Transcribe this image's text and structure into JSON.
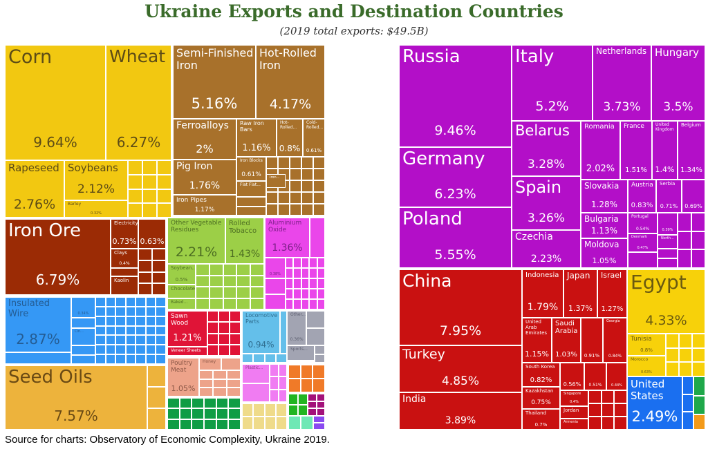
{
  "title": "Ukraine Exports and Destination Countries",
  "subtitle": "(2019 total exports: $49.5B)",
  "source": "Source for charts: Observatory of Economic Complexity, Ukraine 2019.",
  "colors": {
    "yellow": "#f2c811",
    "brown": "#a8712b",
    "maroon": "#9b2b05",
    "green": "#9ccf47",
    "pink": "#ea46ea",
    "blue": "#3598f5",
    "orange": "#edb33c",
    "red": "#e01437",
    "lightblue": "#64bfea",
    "grey": "#a2a4b2",
    "salmon": "#eda38a",
    "pink2": "#f07cf2",
    "darkgreen": "#0f9d45",
    "lightyellow": "#efdb8a",
    "orange2": "#f07a28",
    "green2": "#22b522",
    "purple": "#a3127a",
    "mint": "#6fe8b5",
    "violet": "#8a4af0",
    "rpurple": "#b30fc8",
    "rred": "#c91111",
    "ryellow": "#f7d10a",
    "rblue": "#1a6ff0",
    "rgreen": "#1fa84a",
    "rorange": "#f39a1a"
  },
  "chart_data": [
    {
      "type": "treemap",
      "title": "Ukraine Exports and Destination Countries",
      "subtitle": "(2019 total exports: $49.5B)",
      "items": [
        {
          "label": "Corn",
          "value": "9.64%",
          "color": "yellow"
        },
        {
          "label": "Wheat",
          "value": "6.27%",
          "color": "yellow"
        },
        {
          "label": "Rapeseed",
          "value": "2.76%",
          "color": "yellow"
        },
        {
          "label": "Soybeans",
          "value": "2.12%",
          "color": "yellow"
        },
        {
          "label": "Barley",
          "value": "0.32%",
          "color": "yellow"
        },
        {
          "label": "Semi-Finished Iron",
          "value": "5.16%",
          "color": "brown"
        },
        {
          "label": "Hot-Rolled Iron",
          "value": "4.17%",
          "color": "brown"
        },
        {
          "label": "Ferroalloys",
          "value": "2%",
          "color": "brown"
        },
        {
          "label": "Raw Iron Bars",
          "value": "1.16%",
          "color": "brown"
        },
        {
          "label": "Hot-Rolled...",
          "value": "0.8%",
          "color": "brown"
        },
        {
          "label": "Cold-Rolled...",
          "value": "0.61%",
          "color": "brown"
        },
        {
          "label": "Pig Iron",
          "value": "1.76%",
          "color": "brown"
        },
        {
          "label": "Iron Pipes",
          "value": "1.17%",
          "color": "brown"
        },
        {
          "label": "Iron Blocks",
          "value": "0.61%",
          "color": "brown"
        },
        {
          "label": "Flat Flat...",
          "value": "",
          "color": "brown"
        },
        {
          "label": "Iron...",
          "value": "",
          "color": "brown"
        },
        {
          "label": "Iron Ore",
          "value": "6.79%",
          "color": "maroon"
        },
        {
          "label": "Electricity",
          "value": "0.73%",
          "color": "maroon"
        },
        {
          "label": "",
          "value": "0.63%",
          "color": "maroon"
        },
        {
          "label": "Clays",
          "value": "0.4%",
          "color": "maroon"
        },
        {
          "label": "Kaolin",
          "value": "",
          "color": "maroon"
        },
        {
          "label": "Other Vegetable Residues",
          "value": "2.21%",
          "color": "green"
        },
        {
          "label": "Rolled Tobacco",
          "value": "1.43%",
          "color": "green"
        },
        {
          "label": "Soybean...",
          "value": "0.5%",
          "color": "green"
        },
        {
          "label": "Chocolate",
          "value": "",
          "color": "green"
        },
        {
          "label": "Baked...",
          "value": "",
          "color": "green"
        },
        {
          "label": "Aluminium Oxide",
          "value": "1.36%",
          "color": "pink"
        },
        {
          "label": "",
          "value": "0.38%",
          "color": "pink"
        },
        {
          "label": "Insulated Wire",
          "value": "2.87%",
          "color": "blue"
        },
        {
          "label": "",
          "value": "0.34%",
          "color": "blue"
        },
        {
          "label": "Cin...",
          "value": "",
          "color": "blue"
        },
        {
          "label": "Seed Oils",
          "value": "7.57%",
          "color": "orange"
        },
        {
          "label": "Sawn Wood",
          "value": "1.21%",
          "color": "red"
        },
        {
          "label": "Veneer Sheets",
          "value": "",
          "color": "red"
        },
        {
          "label": "Locomotive Parts",
          "value": "0.94%",
          "color": "lightblue"
        },
        {
          "label": "Other...",
          "value": "0.36%",
          "color": "grey"
        },
        {
          "label": "Sports...",
          "value": "",
          "color": "grey"
        },
        {
          "label": "Poultry Meat",
          "value": "1.05%",
          "color": "salmon"
        },
        {
          "label": "Honey",
          "value": "",
          "color": "salmon"
        },
        {
          "label": "Plastic...",
          "value": "",
          "color": "pink2"
        }
      ]
    },
    {
      "type": "treemap",
      "items": [
        {
          "label": "Russia",
          "value": "9.46%",
          "color": "rpurple"
        },
        {
          "label": "Germany",
          "value": "6.23%",
          "color": "rpurple"
        },
        {
          "label": "Poland",
          "value": "5.55%",
          "color": "rpurple"
        },
        {
          "label": "Italy",
          "value": "5.2%",
          "color": "rpurple"
        },
        {
          "label": "Netherlands",
          "value": "3.73%",
          "color": "rpurple"
        },
        {
          "label": "Hungary",
          "value": "3.5%",
          "color": "rpurple"
        },
        {
          "label": "Belarus",
          "value": "3.28%",
          "color": "rpurple"
        },
        {
          "label": "Spain",
          "value": "3.26%",
          "color": "rpurple"
        },
        {
          "label": "Czechia",
          "value": "2.23%",
          "color": "rpurple"
        },
        {
          "label": "Romania",
          "value": "2.02%",
          "color": "rpurple"
        },
        {
          "label": "France",
          "value": "1.51%",
          "color": "rpurple"
        },
        {
          "label": "United Kingdom",
          "value": "1.4%",
          "color": "rpurple"
        },
        {
          "label": "Belgium",
          "value": "1.34%",
          "color": "rpurple"
        },
        {
          "label": "Slovakia",
          "value": "1.28%",
          "color": "rpurple"
        },
        {
          "label": "Austria",
          "value": "0.83%",
          "color": "rpurple"
        },
        {
          "label": "Serbia",
          "value": "0.71%",
          "color": "rpurple"
        },
        {
          "label": "",
          "value": "0.69%",
          "color": "rpurple"
        },
        {
          "label": "Bulgaria",
          "value": "1.13%",
          "color": "rpurple"
        },
        {
          "label": "Moldova",
          "value": "1.05%",
          "color": "rpurple"
        },
        {
          "label": "Portugal",
          "value": "0.54%",
          "color": "rpurple"
        },
        {
          "label": "Denmark",
          "value": "0.47%",
          "color": "rpurple"
        },
        {
          "label": "",
          "value": "0.39%",
          "color": "rpurple"
        },
        {
          "label": "North...",
          "value": "",
          "color": "rpurple"
        },
        {
          "label": "China",
          "value": "7.95%",
          "color": "rred"
        },
        {
          "label": "Turkey",
          "value": "4.85%",
          "color": "rred"
        },
        {
          "label": "India",
          "value": "3.89%",
          "color": "rred"
        },
        {
          "label": "Indonesia",
          "value": "1.79%",
          "color": "rred"
        },
        {
          "label": "Japan",
          "value": "1.37%",
          "color": "rred"
        },
        {
          "label": "Israel",
          "value": "1.27%",
          "color": "rred"
        },
        {
          "label": "United Arab Emirates",
          "value": "1.15%",
          "color": "rred"
        },
        {
          "label": "Saudi Arabia",
          "value": "1.03%",
          "color": "rred"
        },
        {
          "label": "",
          "value": "0.91%",
          "color": "rred"
        },
        {
          "label": "Georgia",
          "value": "0.84%",
          "color": "rred"
        },
        {
          "label": "South Korea",
          "value": "0.82%",
          "color": "rred"
        },
        {
          "label": "",
          "value": "0.56%",
          "color": "rred"
        },
        {
          "label": "",
          "value": "0.51%",
          "color": "rred"
        },
        {
          "label": "",
          "value": "0.44%",
          "color": "rred"
        },
        {
          "label": "Kazakhstan",
          "value": "0.75%",
          "color": "rred"
        },
        {
          "label": "Thailand",
          "value": "0.7%",
          "color": "rred"
        },
        {
          "label": "Singapore",
          "value": "0.4%",
          "color": "rred"
        },
        {
          "label": "Jordan",
          "value": "",
          "color": "rred"
        },
        {
          "label": "Armenia",
          "value": "",
          "color": "rred"
        },
        {
          "label": "Egypt",
          "value": "4.33%",
          "color": "ryellow"
        },
        {
          "label": "Tunisia",
          "value": "0.8%",
          "color": "ryellow"
        },
        {
          "label": "Morocco",
          "value": "0.63%",
          "color": "ryellow"
        },
        {
          "label": "United States",
          "value": "2.49%",
          "color": "rblue"
        }
      ]
    }
  ]
}
